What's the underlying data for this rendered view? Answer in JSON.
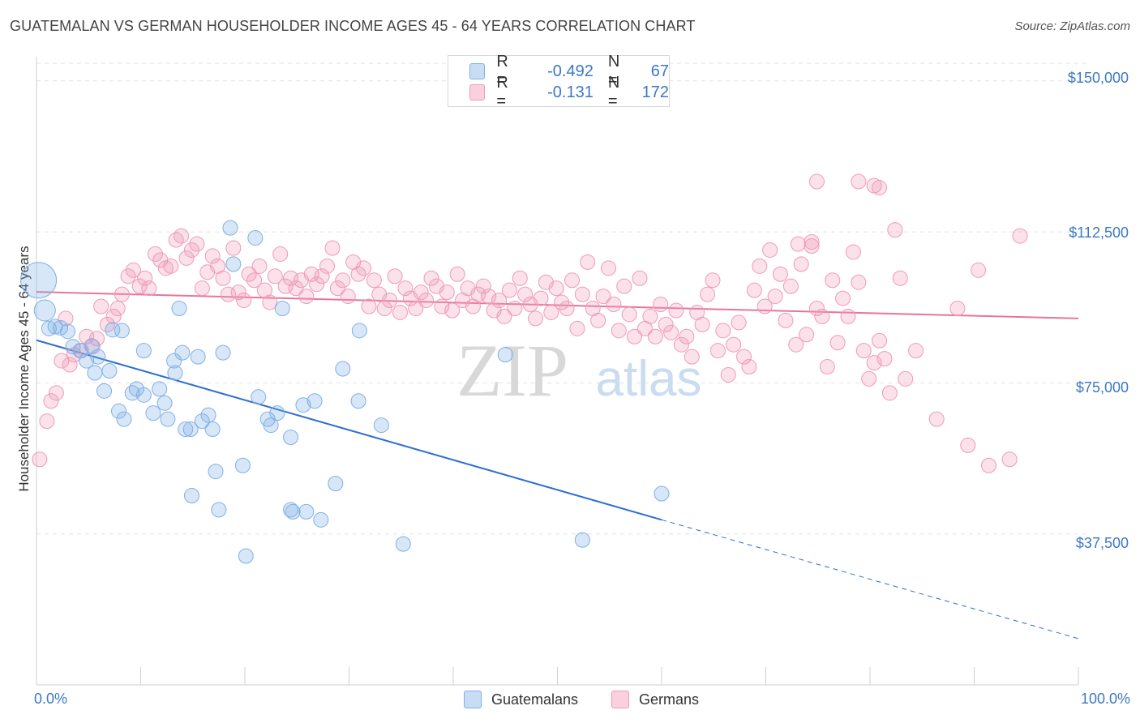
{
  "header": {
    "title": "GUATEMALAN VS GERMAN HOUSEHOLDER INCOME AGES 45 - 64 YEARS CORRELATION CHART",
    "source": "Source: ZipAtlas.com"
  },
  "watermark": {
    "zip": "ZIP",
    "atlas": "atlas"
  },
  "legend": {
    "items": [
      {
        "r_label": "R =",
        "r_value": "-0.492",
        "n_label": "N =",
        "n_value": "67",
        "color": "#7fb0e6"
      },
      {
        "r_label": "R =",
        "r_value": "-0.131",
        "n_label": "N =",
        "n_value": "172",
        "color": "#f09ab8"
      }
    ]
  },
  "bottom_legend": [
    "Guatemalans",
    "Germans"
  ],
  "chart_data": {
    "type": "scatter",
    "title": "GUATEMALAN VS GERMAN HOUSEHOLDER INCOME AGES 45 - 64 YEARS CORRELATION CHART",
    "xlabel": "",
    "ylabel": "Householder Income Ages 45 - 64 years",
    "xlim": [
      0,
      100
    ],
    "ylim": [
      0,
      156000
    ],
    "x_tick_labels": [
      "0.0%",
      "100.0%"
    ],
    "y_ticks": [
      37500,
      75000,
      112500,
      150000
    ],
    "y_tick_labels": [
      "$37,500",
      "$75,000",
      "$112,500",
      "$150,000"
    ],
    "grid": true,
    "legend_position": "top-center",
    "colors": {
      "guatemalans": "#7fb0e6",
      "germans": "#f09ab8",
      "guatemalan_line": "#2f6fd0",
      "german_line": "#e8749c",
      "tick_text": "#3c78c8"
    },
    "series": [
      {
        "name": "Guatemalans",
        "trend": {
          "x": [
            0,
            60
          ],
          "y": [
            85600,
            41000
          ],
          "dashed_to": [
            100,
            11500
          ]
        },
        "points": [
          [
            0.2,
            100500,
            "large"
          ],
          [
            0.8,
            93000,
            "medium"
          ],
          [
            1.2,
            88500
          ],
          [
            1.8,
            89000
          ],
          [
            2.3,
            88700
          ],
          [
            3.0,
            87800
          ],
          [
            3.5,
            84000
          ],
          [
            4.2,
            83000
          ],
          [
            4.8,
            80500
          ],
          [
            5.3,
            84200
          ],
          [
            5.6,
            77500
          ],
          [
            5.9,
            81500
          ],
          [
            7.3,
            88200
          ],
          [
            8.2,
            88000
          ],
          [
            6.5,
            73000
          ],
          [
            7.0,
            78000
          ],
          [
            7.9,
            68000
          ],
          [
            8.4,
            66000
          ],
          [
            9.2,
            72500
          ],
          [
            9.6,
            73500
          ],
          [
            10.3,
            83000
          ],
          [
            10.3,
            72000
          ],
          [
            11.2,
            67500
          ],
          [
            11.8,
            73500
          ],
          [
            12.3,
            70000
          ],
          [
            12.6,
            66000
          ],
          [
            13.2,
            80500
          ],
          [
            13.3,
            77500
          ],
          [
            13.7,
            93500
          ],
          [
            14.0,
            82500
          ],
          [
            14.3,
            63500
          ],
          [
            14.8,
            63500
          ],
          [
            15.5,
            81500
          ],
          [
            15.9,
            65500
          ],
          [
            16.5,
            67000
          ],
          [
            16.9,
            63500
          ],
          [
            17.2,
            53000
          ],
          [
            14.9,
            47000
          ],
          [
            17.5,
            43500
          ],
          [
            17.9,
            82500
          ],
          [
            18.9,
            104500
          ],
          [
            19.8,
            54500
          ],
          [
            20.1,
            32000
          ],
          [
            18.6,
            113500
          ],
          [
            21.0,
            111000
          ],
          [
            21.3,
            71500
          ],
          [
            22.2,
            66000
          ],
          [
            22.5,
            64500
          ],
          [
            23.1,
            67500
          ],
          [
            23.6,
            93500
          ],
          [
            24.4,
            61500
          ],
          [
            24.6,
            43000
          ],
          [
            25.6,
            69500
          ],
          [
            25.9,
            43000
          ],
          [
            26.7,
            70500
          ],
          [
            27.3,
            41000
          ],
          [
            28.7,
            50000
          ],
          [
            29.4,
            78500
          ],
          [
            30.9,
            70500
          ],
          [
            31.0,
            88000
          ],
          [
            33.1,
            64500
          ],
          [
            35.2,
            35000
          ],
          [
            45.0,
            82000
          ],
          [
            52.4,
            36000
          ],
          [
            60.0,
            47500
          ],
          [
            24.4,
            43500
          ]
        ]
      },
      {
        "name": "Germans",
        "trend": {
          "x": [
            0,
            100
          ],
          "y": [
            97600,
            91000
          ]
        },
        "points": [
          [
            0.3,
            56000
          ],
          [
            1.0,
            65500
          ],
          [
            1.4,
            70500
          ],
          [
            1.9,
            72500
          ],
          [
            2.4,
            80500
          ],
          [
            2.8,
            91000
          ],
          [
            3.2,
            79500
          ],
          [
            3.6,
            82000
          ],
          [
            4.3,
            83000
          ],
          [
            4.8,
            86500
          ],
          [
            5.4,
            84000
          ],
          [
            5.8,
            86000
          ],
          [
            6.2,
            94000
          ],
          [
            6.8,
            89500
          ],
          [
            7.4,
            91500
          ],
          [
            7.8,
            93500
          ],
          [
            8.2,
            97000
          ],
          [
            8.8,
            101500
          ],
          [
            9.3,
            103000
          ],
          [
            9.9,
            99000
          ],
          [
            10.4,
            101000
          ],
          [
            10.8,
            98500
          ],
          [
            11.4,
            107000
          ],
          [
            11.9,
            105500
          ],
          [
            12.4,
            103500
          ],
          [
            12.9,
            104000
          ],
          [
            13.4,
            110500
          ],
          [
            13.9,
            111500
          ],
          [
            14.4,
            106000
          ],
          [
            14.9,
            108000
          ],
          [
            15.4,
            109500
          ],
          [
            15.9,
            98500
          ],
          [
            16.4,
            102500
          ],
          [
            16.9,
            106500
          ],
          [
            17.4,
            104000
          ],
          [
            17.9,
            101000
          ],
          [
            18.4,
            97000
          ],
          [
            18.9,
            108500
          ],
          [
            19.4,
            97500
          ],
          [
            19.9,
            95500
          ],
          [
            20.4,
            102000
          ],
          [
            20.9,
            100500
          ],
          [
            21.4,
            104000
          ],
          [
            21.9,
            98000
          ],
          [
            22.4,
            95000
          ],
          [
            22.9,
            101500
          ],
          [
            23.4,
            107000
          ],
          [
            23.9,
            99000
          ],
          [
            24.4,
            101000
          ],
          [
            24.9,
            98500
          ],
          [
            25.4,
            100500
          ],
          [
            25.9,
            96500
          ],
          [
            26.4,
            102000
          ],
          [
            26.9,
            99500
          ],
          [
            27.4,
            101500
          ],
          [
            27.9,
            104000
          ],
          [
            28.4,
            108500
          ],
          [
            28.9,
            98500
          ],
          [
            29.4,
            100500
          ],
          [
            29.9,
            96500
          ],
          [
            30.4,
            105000
          ],
          [
            30.9,
            102000
          ],
          [
            31.4,
            103500
          ],
          [
            31.9,
            94000
          ],
          [
            32.4,
            100500
          ],
          [
            32.9,
            97000
          ],
          [
            33.4,
            93500
          ],
          [
            33.9,
            95500
          ],
          [
            34.4,
            101500
          ],
          [
            34.9,
            92500
          ],
          [
            35.4,
            98500
          ],
          [
            35.9,
            96000
          ],
          [
            36.4,
            93500
          ],
          [
            36.9,
            97500
          ],
          [
            37.4,
            95500
          ],
          [
            37.9,
            101000
          ],
          [
            38.4,
            99000
          ],
          [
            38.9,
            94000
          ],
          [
            39.4,
            97500
          ],
          [
            39.9,
            93000
          ],
          [
            40.4,
            102000
          ],
          [
            40.9,
            95500
          ],
          [
            41.4,
            98500
          ],
          [
            41.9,
            94000
          ],
          [
            42.4,
            97000
          ],
          [
            42.9,
            99000
          ],
          [
            43.4,
            96500
          ],
          [
            43.9,
            93000
          ],
          [
            44.4,
            95500
          ],
          [
            44.9,
            91500
          ],
          [
            45.4,
            98000
          ],
          [
            45.9,
            93500
          ],
          [
            46.4,
            101000
          ],
          [
            46.9,
            97000
          ],
          [
            47.4,
            94500
          ],
          [
            47.9,
            91000
          ],
          [
            48.4,
            96000
          ],
          [
            48.9,
            100000
          ],
          [
            49.4,
            92500
          ],
          [
            49.9,
            98500
          ],
          [
            50.4,
            95000
          ],
          [
            50.9,
            93500
          ],
          [
            51.4,
            100500
          ],
          [
            51.9,
            88500
          ],
          [
            52.4,
            97000
          ],
          [
            52.9,
            105000
          ],
          [
            53.4,
            93500
          ],
          [
            53.9,
            90500
          ],
          [
            54.4,
            96500
          ],
          [
            54.9,
            103500
          ],
          [
            55.4,
            94500
          ],
          [
            55.9,
            88000
          ],
          [
            56.4,
            99000
          ],
          [
            56.9,
            92000
          ],
          [
            57.4,
            86500
          ],
          [
            57.9,
            101000
          ],
          [
            58.4,
            88500
          ],
          [
            58.9,
            91500
          ],
          [
            59.4,
            86500
          ],
          [
            59.9,
            94500
          ],
          [
            60.4,
            89500
          ],
          [
            60.9,
            87500
          ],
          [
            61.4,
            93000
          ],
          [
            61.9,
            84500
          ],
          [
            62.4,
            86500
          ],
          [
            62.9,
            81500
          ],
          [
            63.4,
            92500
          ],
          [
            63.9,
            89500
          ],
          [
            64.4,
            97000
          ],
          [
            64.9,
            100500
          ],
          [
            65.4,
            83000
          ],
          [
            65.9,
            88000
          ],
          [
            66.4,
            77000
          ],
          [
            66.9,
            84500
          ],
          [
            67.4,
            90000
          ],
          [
            67.9,
            81500
          ],
          [
            68.4,
            79000
          ],
          [
            68.9,
            98000
          ],
          [
            69.4,
            104000
          ],
          [
            69.9,
            94000
          ],
          [
            70.4,
            108000
          ],
          [
            70.9,
            96500
          ],
          [
            71.4,
            102000
          ],
          [
            71.9,
            90500
          ],
          [
            72.4,
            99000
          ],
          [
            72.9,
            84500
          ],
          [
            73.4,
            104500
          ],
          [
            73.9,
            87000
          ],
          [
            74.4,
            110000
          ],
          [
            74.9,
            93500
          ],
          [
            75.4,
            91500
          ],
          [
            75.9,
            79000
          ],
          [
            76.4,
            100500
          ],
          [
            76.9,
            85000
          ],
          [
            77.4,
            96000
          ],
          [
            77.9,
            91500
          ],
          [
            78.4,
            107500
          ],
          [
            78.9,
            100000
          ],
          [
            79.4,
            83000
          ],
          [
            79.9,
            76000
          ],
          [
            80.4,
            80000
          ],
          [
            80.9,
            85500
          ],
          [
            81.4,
            81000
          ],
          [
            81.9,
            72500
          ],
          [
            82.4,
            113000
          ],
          [
            82.9,
            101000
          ],
          [
            83.4,
            76000
          ],
          [
            84.4,
            83000
          ],
          [
            86.4,
            66000
          ],
          [
            88.4,
            93500
          ],
          [
            89.4,
            59500
          ],
          [
            90.4,
            103000
          ],
          [
            91.4,
            54500
          ],
          [
            93.4,
            56000
          ],
          [
            94.4,
            111500
          ],
          [
            74.9,
            125000
          ],
          [
            78.9,
            125000
          ],
          [
            80.4,
            124000
          ],
          [
            80.9,
            123500
          ],
          [
            74.4,
            109000
          ],
          [
            73.1,
            109500
          ]
        ]
      }
    ]
  }
}
